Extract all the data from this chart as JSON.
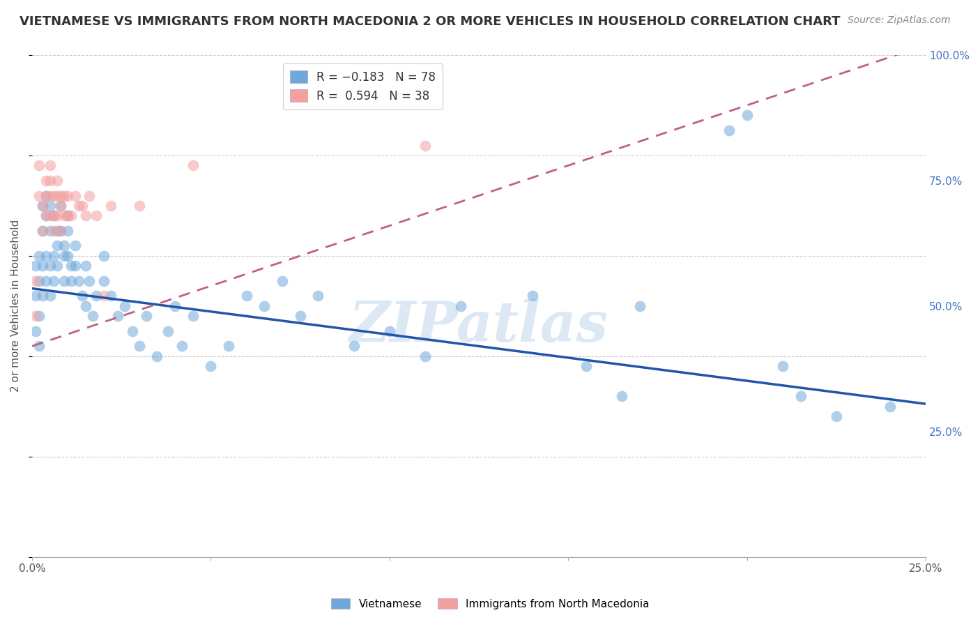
{
  "title": "VIETNAMESE VS IMMIGRANTS FROM NORTH MACEDONIA 2 OR MORE VEHICLES IN HOUSEHOLD CORRELATION CHART",
  "source": "Source: ZipAtlas.com",
  "ylabel": "2 or more Vehicles in Household",
  "xmin": 0.0,
  "xmax": 0.25,
  "ymin": 0.0,
  "ymax": 1.0,
  "blue_color": "#6fa8dc",
  "pink_color": "#f4a0a0",
  "blue_line_color": "#2255aa",
  "pink_line_color": "#c06080",
  "watermark": "ZIPatlas",
  "watermark_color": "#dde8f5",
  "grid_color": "#cccccc",
  "background_color": "#ffffff",
  "title_fontsize": 13,
  "source_fontsize": 10,
  "axis_label_fontsize": 11,
  "tick_fontsize": 11,
  "legend_fontsize": 12,
  "marker_size": 130,
  "marker_alpha": 0.55,
  "blue_line_y0": 0.535,
  "blue_line_y1": 0.305,
  "pink_line_y0": 0.42,
  "pink_line_y1": 1.02,
  "blue_x": [
    0.001,
    0.001,
    0.001,
    0.002,
    0.002,
    0.002,
    0.002,
    0.003,
    0.003,
    0.003,
    0.003,
    0.004,
    0.004,
    0.004,
    0.004,
    0.005,
    0.005,
    0.005,
    0.005,
    0.006,
    0.006,
    0.006,
    0.007,
    0.007,
    0.007,
    0.008,
    0.008,
    0.009,
    0.009,
    0.009,
    0.01,
    0.01,
    0.01,
    0.011,
    0.011,
    0.012,
    0.012,
    0.013,
    0.014,
    0.015,
    0.015,
    0.016,
    0.017,
    0.018,
    0.02,
    0.02,
    0.022,
    0.024,
    0.026,
    0.028,
    0.03,
    0.032,
    0.035,
    0.038,
    0.04,
    0.042,
    0.045,
    0.05,
    0.055,
    0.06,
    0.065,
    0.07,
    0.075,
    0.08,
    0.09,
    0.1,
    0.11,
    0.12,
    0.14,
    0.155,
    0.165,
    0.17,
    0.195,
    0.2,
    0.21,
    0.215,
    0.225,
    0.24
  ],
  "blue_y": [
    0.52,
    0.58,
    0.45,
    0.55,
    0.6,
    0.48,
    0.42,
    0.65,
    0.7,
    0.58,
    0.52,
    0.68,
    0.72,
    0.6,
    0.55,
    0.65,
    0.7,
    0.58,
    0.52,
    0.68,
    0.6,
    0.55,
    0.65,
    0.62,
    0.58,
    0.7,
    0.65,
    0.6,
    0.55,
    0.62,
    0.68,
    0.65,
    0.6,
    0.58,
    0.55,
    0.62,
    0.58,
    0.55,
    0.52,
    0.58,
    0.5,
    0.55,
    0.48,
    0.52,
    0.55,
    0.6,
    0.52,
    0.48,
    0.5,
    0.45,
    0.42,
    0.48,
    0.4,
    0.45,
    0.5,
    0.42,
    0.48,
    0.38,
    0.42,
    0.52,
    0.5,
    0.55,
    0.48,
    0.52,
    0.42,
    0.45,
    0.4,
    0.5,
    0.52,
    0.38,
    0.32,
    0.5,
    0.85,
    0.88,
    0.38,
    0.32,
    0.28,
    0.3
  ],
  "pink_x": [
    0.001,
    0.001,
    0.002,
    0.002,
    0.003,
    0.003,
    0.004,
    0.004,
    0.004,
    0.005,
    0.005,
    0.005,
    0.005,
    0.006,
    0.006,
    0.006,
    0.007,
    0.007,
    0.007,
    0.008,
    0.008,
    0.008,
    0.009,
    0.009,
    0.01,
    0.01,
    0.011,
    0.012,
    0.013,
    0.014,
    0.015,
    0.016,
    0.018,
    0.02,
    0.022,
    0.03,
    0.045,
    0.11
  ],
  "pink_y": [
    0.48,
    0.55,
    0.72,
    0.78,
    0.65,
    0.7,
    0.72,
    0.75,
    0.68,
    0.68,
    0.72,
    0.75,
    0.78,
    0.65,
    0.68,
    0.72,
    0.68,
    0.72,
    0.75,
    0.65,
    0.7,
    0.72,
    0.68,
    0.72,
    0.68,
    0.72,
    0.68,
    0.72,
    0.7,
    0.7,
    0.68,
    0.72,
    0.68,
    0.52,
    0.7,
    0.7,
    0.78,
    0.82
  ]
}
